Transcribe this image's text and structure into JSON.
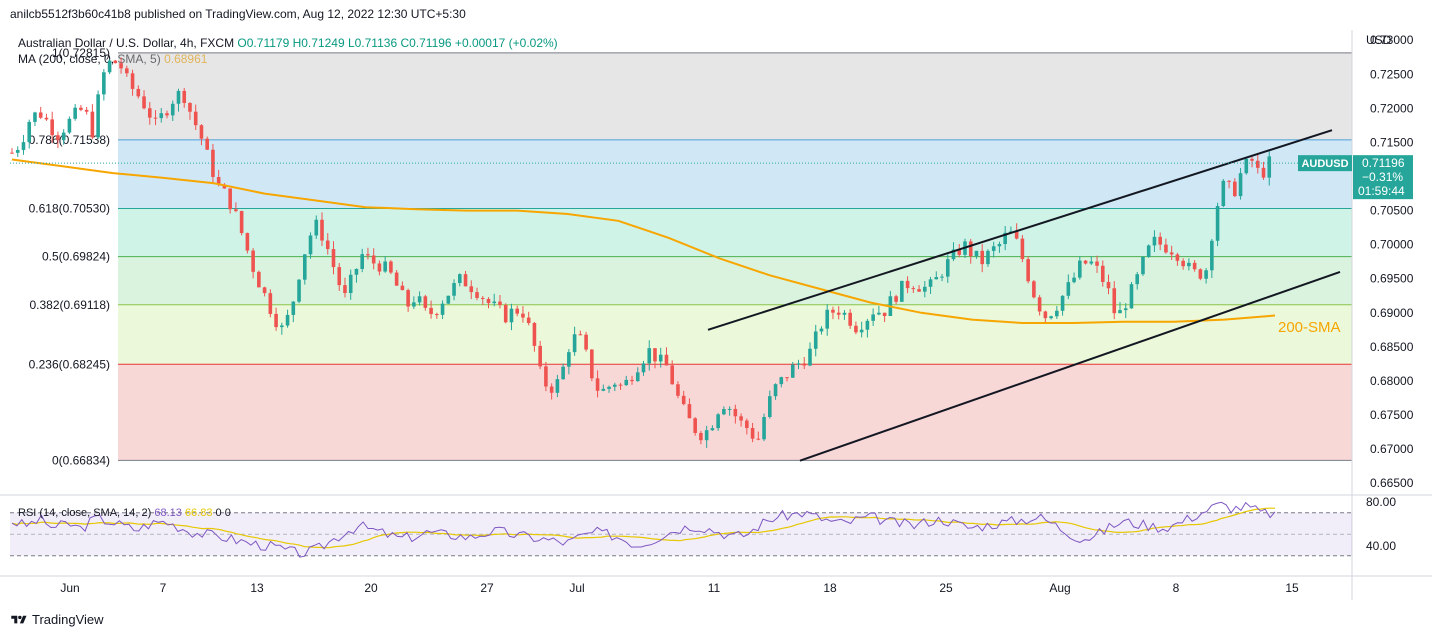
{
  "header": {
    "published": "anilcb5512f3b60c41b8 published on TradingView.com, Aug 12, 2022 12:30 UTC+5:30"
  },
  "legend": {
    "symbol": "Australian Dollar / U.S. Dollar, 4h, FXCM",
    "ohlc": "O0.71179 H0.71249 L0.71136 C0.71196 +0.00017 (+0.02%)",
    "ma_label": "MA (200, close, 0, SMA, 5)",
    "ma_value": "0.68961"
  },
  "price_axis": {
    "currency": "USD",
    "ticks": [
      "0.73000",
      "0.72500",
      "0.72000",
      "0.71500",
      "0.71000",
      "0.70500",
      "0.70000",
      "0.69500",
      "0.69000",
      "0.68500",
      "0.68000",
      "0.67500",
      "0.67000",
      "0.66500"
    ]
  },
  "price_tag": {
    "symbol": "AUDUSD",
    "price": "0.71196",
    "change": "−0.31%",
    "countdown": "01:59:44"
  },
  "fib_labels": [
    "1(0.72815)",
    "0.786(0.71538)",
    "0.618(0.70530)",
    "0.5(0.69824)",
    "0.382(0.69118)",
    "0.236(0.68245)",
    "0(0.66834)"
  ],
  "annotation": "200-SMA",
  "rsi": {
    "legend": "RSI (14, close, SMA, 14, 2)",
    "value1": "68.13",
    "value2": "66.83",
    "value3": "0",
    "value4": "0",
    "ticks": [
      "80.00",
      "40.00"
    ]
  },
  "time_axis": [
    "Jun",
    "7",
    "13",
    "20",
    "27",
    "Jul",
    "11",
    "18",
    "25",
    "Aug",
    "8",
    "15"
  ],
  "footer": {
    "brand": "TradingView"
  },
  "colors": {
    "up": "#26a69a",
    "down": "#ef5350",
    "sma": "#f7a600",
    "rsi": "#7e57c2",
    "rsi_ma": "#e6c700"
  },
  "chart_data": {
    "type": "candlestick",
    "title": "Australian Dollar / U.S. Dollar, 4h, FXCM",
    "ylim": [
      0.664,
      0.7315
    ],
    "fib_levels": [
      {
        "ratio": 1,
        "price": 0.72815
      },
      {
        "ratio": 0.786,
        "price": 0.71538
      },
      {
        "ratio": 0.618,
        "price": 0.7053
      },
      {
        "ratio": 0.5,
        "price": 0.69824
      },
      {
        "ratio": 0.382,
        "price": 0.69118
      },
      {
        "ratio": 0.236,
        "price": 0.68245
      },
      {
        "ratio": 0,
        "price": 0.66834
      }
    ],
    "close_path": [
      0.7135,
      0.715,
      0.7185,
      0.7195,
      0.718,
      0.716,
      0.7175,
      0.719,
      0.72,
      0.7165,
      0.7245,
      0.727,
      0.7265,
      0.7235,
      0.722,
      0.72,
      0.7175,
      0.7195,
      0.7215,
      0.7225,
      0.719,
      0.716,
      0.712,
      0.7085,
      0.707,
      0.704,
      0.7,
      0.696,
      0.693,
      0.69,
      0.6875,
      0.69,
      0.696,
      0.701,
      0.703,
      0.7,
      0.696,
      0.692,
      0.6955,
      0.6985,
      0.6975,
      0.697,
      0.696,
      0.6935,
      0.691,
      0.6925,
      0.69,
      0.69,
      0.692,
      0.6935,
      0.695,
      0.694,
      0.693,
      0.6915,
      0.6905,
      0.6895,
      0.6905,
      0.69,
      0.686,
      0.68,
      0.679,
      0.68,
      0.685,
      0.687,
      0.6835,
      0.679,
      0.6785,
      0.68,
      0.679,
      0.681,
      0.683,
      0.6845,
      0.683,
      0.682,
      0.678,
      0.675,
      0.673,
      0.672,
      0.674,
      0.677,
      0.676,
      0.674,
      0.673,
      0.671,
      0.676,
      0.679,
      0.6805,
      0.682,
      0.683,
      0.6845,
      0.688,
      0.69,
      0.6905,
      0.6895,
      0.688,
      0.689,
      0.6905,
      0.69,
      0.692,
      0.6935,
      0.6945,
      0.694,
      0.6935,
      0.695,
      0.697,
      0.6985,
      0.7,
      0.6985,
      0.6975,
      0.699,
      0.7,
      0.702,
      0.7,
      0.696,
      0.692,
      0.6895,
      0.6905,
      0.6925,
      0.6945,
      0.697,
      0.6975,
      0.696,
      0.6935,
      0.689,
      0.6915,
      0.694,
      0.6975,
      0.7005,
      0.7,
      0.6995,
      0.6985,
      0.6965,
      0.6955,
      0.6965,
      0.705,
      0.709,
      0.7075,
      0.711,
      0.7125,
      0.71,
      0.712
    ],
    "sma200_path": [
      0.7125,
      0.7115,
      0.7105,
      0.7098,
      0.709,
      0.7075,
      0.7065,
      0.7055,
      0.7052,
      0.705,
      0.705,
      0.7045,
      0.7035,
      0.701,
      0.698,
      0.6955,
      0.6935,
      0.6915,
      0.69,
      0.689,
      0.6885,
      0.6885,
      0.6887,
      0.6887,
      0.689,
      0.6896
    ],
    "channel": {
      "upper": [
        {
          "x_label": "Jul 11",
          "price": 0.6875
        },
        {
          "x_label": "Aug 15+",
          "price": 0.7168
        }
      ],
      "lower": [
        {
          "x_label": "Jul 15",
          "price": 0.6683
        },
        {
          "x_label": "Aug 15+",
          "price": 0.696
        }
      ]
    },
    "rsi_path": [
      62,
      58,
      64,
      56,
      60,
      55,
      65,
      62,
      58,
      54,
      60,
      62,
      57,
      52,
      50,
      48,
      45,
      42,
      40,
      38,
      34,
      32,
      36,
      44,
      52,
      58,
      54,
      50,
      46,
      48,
      52,
      50,
      49,
      47,
      51,
      53,
      50,
      48,
      46,
      44,
      42,
      48,
      52,
      50,
      46,
      40,
      44,
      50,
      55,
      58,
      56,
      52,
      48,
      50,
      60,
      66,
      68,
      70,
      66,
      62,
      60,
      64,
      66,
      62,
      60,
      58,
      62,
      64,
      60,
      56,
      58,
      60,
      62,
      64,
      66,
      60,
      52,
      46,
      48,
      56,
      62,
      60,
      58,
      56,
      60,
      66,
      72,
      78,
      74,
      76,
      70,
      69
    ],
    "xlabel": "",
    "ylabel": "USD"
  }
}
